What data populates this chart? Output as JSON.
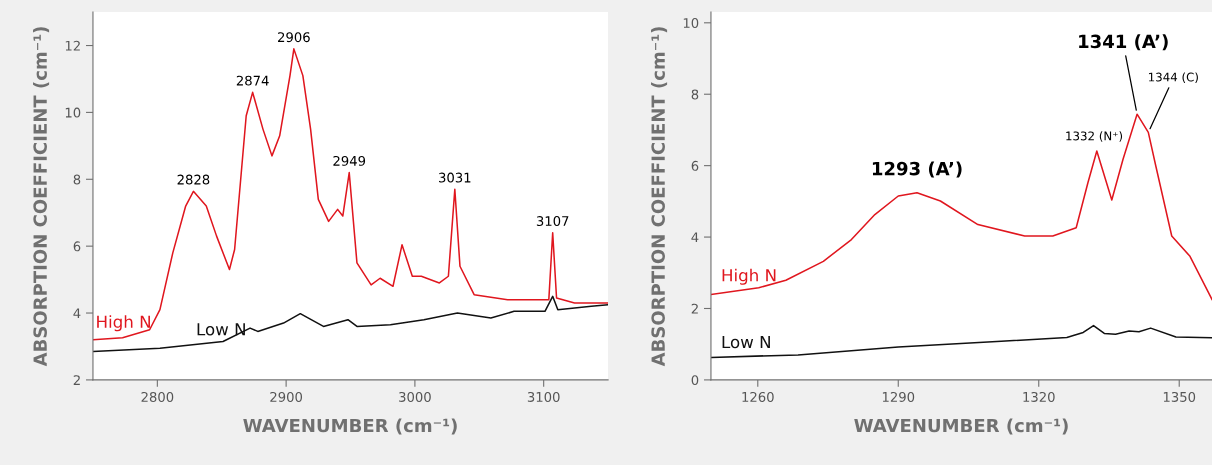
{
  "chart_data": [
    {
      "type": "line",
      "xlabel": "WAVENUMBER (cm⁻¹)",
      "ylabel": "ABSORPTION COEFFICIENT (cm⁻¹)",
      "xlim": [
        2750,
        3150
      ],
      "xticks": [
        2800,
        2900,
        3000,
        3100
      ],
      "ylim": [
        2,
        13
      ],
      "yticks": [
        2,
        4,
        6,
        8,
        10,
        12
      ],
      "grid": false,
      "legend": false,
      "marker": "none",
      "line_style": "solid",
      "series": [
        {
          "name": "High N",
          "color": "#e0161e",
          "x": [
            2750,
            2773,
            2794,
            2802,
            2812,
            2822,
            2828,
            2838,
            2846,
            2856,
            2860,
            2869,
            2874,
            2882,
            2889,
            2895,
            2903,
            2906,
            2913,
            2919,
            2925,
            2933,
            2940,
            2944,
            2949,
            2955,
            2966,
            2973,
            2983,
            2990,
            2998,
            3005,
            3019,
            3026,
            3031,
            3035,
            3046,
            3072,
            3104,
            3107,
            3110,
            3124,
            3150
          ],
          "values": [
            3.2,
            3.26,
            3.5,
            4.1,
            5.8,
            7.2,
            7.64,
            7.2,
            6.3,
            5.3,
            5.9,
            9.9,
            10.6,
            9.5,
            8.7,
            9.3,
            11.1,
            11.9,
            11.1,
            9.5,
            7.4,
            6.74,
            7.1,
            6.9,
            8.2,
            5.5,
            4.84,
            5.04,
            4.8,
            6.04,
            5.1,
            5.1,
            4.9,
            5.1,
            7.7,
            5.4,
            4.55,
            4.4,
            4.4,
            6.4,
            4.45,
            4.3,
            4.3
          ]
        },
        {
          "name": "Low N",
          "color": "#111111",
          "x": [
            2750,
            2802,
            2851,
            2872,
            2878,
            2898,
            2911,
            2929,
            2948,
            2955,
            2981,
            3007,
            3033,
            3059,
            3077,
            3101,
            3107,
            3111,
            3137,
            3150
          ],
          "values": [
            2.85,
            2.95,
            3.15,
            3.55,
            3.45,
            3.7,
            3.98,
            3.6,
            3.8,
            3.6,
            3.65,
            3.8,
            4.0,
            3.85,
            4.05,
            4.05,
            4.5,
            4.1,
            4.2,
            4.25
          ]
        }
      ],
      "annotations": [
        {
          "text": "2828",
          "x": 2828,
          "y": 7.64
        },
        {
          "text": "2874",
          "x": 2874,
          "y": 10.6
        },
        {
          "text": "2906",
          "x": 2906,
          "y": 11.9
        },
        {
          "text": "2949",
          "x": 2949,
          "y": 8.2
        },
        {
          "text": "3031",
          "x": 3031,
          "y": 7.7
        },
        {
          "text": "3107",
          "x": 3107,
          "y": 6.4
        }
      ]
    },
    {
      "type": "line",
      "xlabel": "WAVENUMBER (cm⁻¹)",
      "ylabel": "ABSORPTION COEFFICIENT (cm⁻¹)",
      "xlim": [
        1250,
        1357
      ],
      "xticks": [
        1260,
        1290,
        1320,
        1350
      ],
      "ylim": [
        0,
        10.3
      ],
      "yticks": [
        0,
        2,
        4,
        6,
        8,
        10
      ],
      "grid": false,
      "legend": false,
      "marker": "none",
      "line_style": "solid",
      "series": [
        {
          "name": "High N",
          "color": "#e0161e",
          "x": [
            1250,
            1260.2,
            1266,
            1274,
            1280,
            1285,
            1290,
            1294,
            1299,
            1307,
            1317,
            1323,
            1328,
            1330.5,
            1332.4,
            1335.6,
            1338,
            1341,
            1343.4,
            1345,
            1348.4,
            1352.3,
            1357
          ],
          "values": [
            2.39,
            2.58,
            2.79,
            3.32,
            3.93,
            4.63,
            5.15,
            5.24,
            5.01,
            4.35,
            4.03,
            4.03,
            4.26,
            5.52,
            6.41,
            5.04,
            6.18,
            7.44,
            6.93,
            5.99,
            4.03,
            3.46,
            2.25
          ]
        },
        {
          "name": "Low N",
          "color": "#111111",
          "x": [
            1250,
            1268.6,
            1290,
            1312,
            1326,
            1329.5,
            1331.7,
            1334,
            1336.4,
            1339.3,
            1341.4,
            1343.9,
            1349.3,
            1357
          ],
          "values": [
            0.63,
            0.7,
            0.92,
            1.08,
            1.19,
            1.33,
            1.52,
            1.3,
            1.28,
            1.37,
            1.35,
            1.45,
            1.2,
            1.18
          ]
        }
      ],
      "annotations": [
        {
          "text": "1293 (A’)",
          "x": 1294,
          "y": 5.24
        },
        {
          "text": "1332 (N⁺)",
          "x": 1332.4,
          "y": 6.41
        },
        {
          "text": "1341 (A’)",
          "x": 1341,
          "y": 7.44
        },
        {
          "text": "1344 (C)",
          "x": 1343.4,
          "y": 6.93
        }
      ]
    }
  ]
}
